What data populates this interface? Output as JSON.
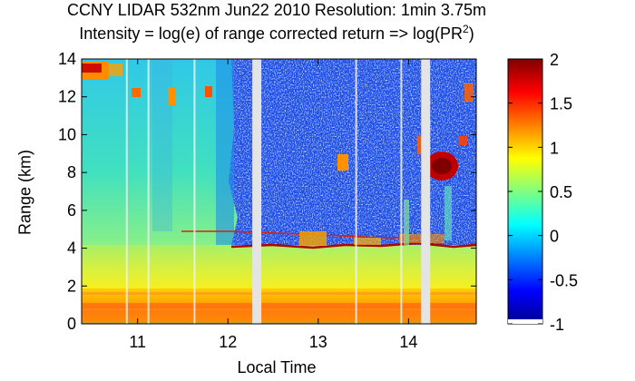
{
  "chart_data": {
    "type": "heatmap",
    "title": "CCNY LIDAR 532nm Jun22 2010 Resolution: 1min 3.75m",
    "subtitle_prefix": "Intensity = log(e) of range corrected return => log(PR",
    "subtitle_sup": "2",
    "subtitle_suffix": ")",
    "xlabel": "Local Time",
    "ylabel": "Range (km)",
    "xlim": [
      10.38,
      14.75
    ],
    "ylim": [
      0,
      14
    ],
    "xticks": [
      11,
      12,
      13,
      14
    ],
    "yticks": [
      0,
      2,
      4,
      6,
      8,
      10,
      12,
      14
    ],
    "colorbar": {
      "range": [
        -1,
        2
      ],
      "ticks": [
        2,
        1.5,
        1,
        0.5,
        0,
        -0.5,
        -1
      ],
      "colormap": [
        "#00008f",
        "#0000ff",
        "#0080ff",
        "#00ffff",
        "#80ff80",
        "#ffff00",
        "#ff8000",
        "#ff0000",
        "#800000"
      ]
    },
    "gaps": [
      {
        "start": 12.27,
        "end": 12.37
      },
      {
        "start": 14.14,
        "end": 14.24
      }
    ],
    "thin_gaps": [
      10.88,
      11.12,
      11.63,
      13.42,
      13.92
    ],
    "features": [
      {
        "name": "boundary layer (high return)",
        "x": [
          10.38,
          14.75
        ],
        "y": [
          0.1,
          1.8
        ],
        "value": 1.3
      },
      {
        "name": "lower troposphere",
        "x": [
          10.38,
          14.75
        ],
        "y": [
          1.8,
          4.2
        ],
        "value": 0.75
      },
      {
        "name": "clear upper air",
        "x": [
          10.38,
          12.1
        ],
        "y": [
          4.2,
          14
        ],
        "value": 0.35
      },
      {
        "name": "noisy upper air",
        "x": [
          12.1,
          14.75
        ],
        "y": [
          4.2,
          14
        ],
        "value": -0.3
      },
      {
        "name": "aerosol layer top",
        "x": [
          12.05,
          14.75
        ],
        "y": [
          3.9,
          4.4
        ],
        "value": 2.0
      },
      {
        "name": "cirrus cloud",
        "x": [
          14.05,
          14.42
        ],
        "y": [
          7.5,
          9.2
        ],
        "value": 2.0
      },
      {
        "name": "cirrus cloud high",
        "x": [
          10.38,
          10.75
        ],
        "y": [
          12.7,
          14
        ],
        "value": 1.2
      }
    ]
  }
}
